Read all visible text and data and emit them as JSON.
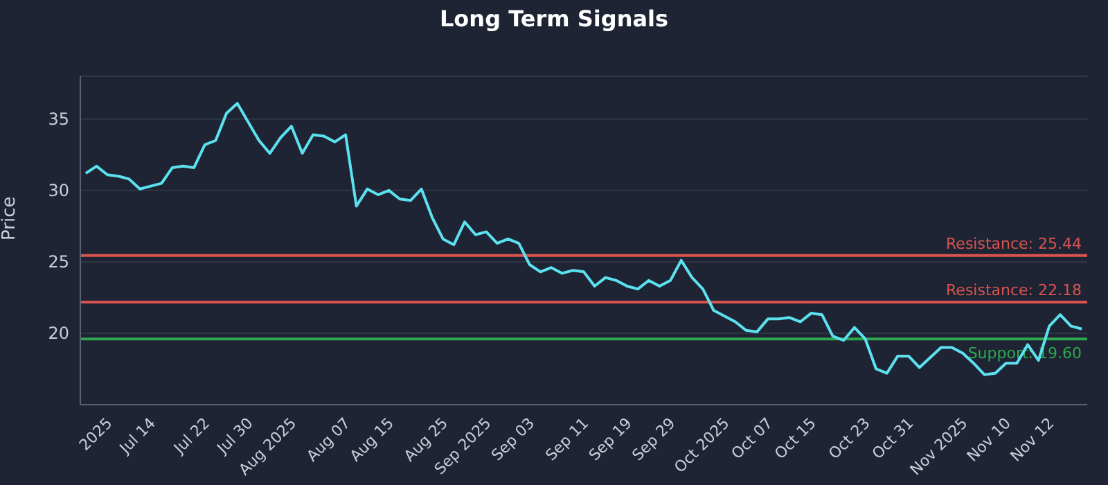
{
  "chart_data": {
    "type": "line",
    "title": "Long Term Signals",
    "ylabel": "Price",
    "categories": [
      null,
      null,
      "2025",
      null,
      null,
      null,
      "Jul 14",
      null,
      null,
      null,
      null,
      "Jul 22",
      null,
      null,
      null,
      "Jul 30",
      null,
      null,
      null,
      "Aug 2025",
      null,
      null,
      null,
      null,
      "Aug 07",
      null,
      null,
      null,
      "Aug 15",
      null,
      null,
      null,
      null,
      "Aug 25",
      null,
      null,
      null,
      "Sep 2025",
      null,
      null,
      null,
      "Sep 03",
      null,
      null,
      null,
      null,
      "Sep 11",
      null,
      null,
      null,
      "Sep 19",
      null,
      null,
      null,
      "Sep 29",
      null,
      null,
      null,
      null,
      "Oct 2025",
      null,
      null,
      null,
      "Oct 07",
      null,
      null,
      null,
      "Oct 15",
      null,
      null,
      null,
      null,
      "Oct 23",
      null,
      null,
      null,
      "Oct 31",
      null,
      null,
      null,
      null,
      "Nov 2025",
      null,
      null,
      null,
      "Nov 10",
      null,
      null,
      null,
      "Nov 12",
      null,
      null,
      null
    ],
    "series": [
      {
        "color": "#5ce1f0",
        "values": [
          31.2,
          31.7,
          31.1,
          31.0,
          30.8,
          30.1,
          30.3,
          30.5,
          31.6,
          31.7,
          31.6,
          33.2,
          33.5,
          35.4,
          36.1,
          34.8,
          33.5,
          32.6,
          33.7,
          34.5,
          32.6,
          33.9,
          33.8,
          33.4,
          33.9,
          28.9,
          30.1,
          29.7,
          30.0,
          29.4,
          29.3,
          30.1,
          28.1,
          26.6,
          26.2,
          27.8,
          26.9,
          27.1,
          26.3,
          26.6,
          26.3,
          24.8,
          24.3,
          24.6,
          24.2,
          24.4,
          24.3,
          23.3,
          23.9,
          23.7,
          23.3,
          23.1,
          23.7,
          23.3,
          23.7,
          25.1,
          23.9,
          23.1,
          21.6,
          21.2,
          20.8,
          20.2,
          20.1,
          21.0,
          21.0,
          21.1,
          20.8,
          21.4,
          21.3,
          19.8,
          19.5,
          20.4,
          19.6,
          17.5,
          17.2,
          18.4,
          18.4,
          17.6,
          18.3,
          19.0,
          19.0,
          18.6,
          17.9,
          17.1,
          17.2,
          17.9,
          17.9,
          19.2,
          18.1,
          20.5,
          21.3,
          20.5,
          20.3
        ]
      }
    ],
    "ylim": [
      15,
      38
    ],
    "yticks": [
      20,
      25,
      30,
      35
    ],
    "grid": "y",
    "legend": false,
    "marker": "none",
    "line_style": "solid",
    "ref_lines": [
      {
        "axis": "y",
        "value": 25.44,
        "label": "Resistance: 25.44",
        "color": "#d9534f"
      },
      {
        "axis": "y",
        "value": 22.18,
        "label": "Resistance: 22.18",
        "color": "#d9534f"
      },
      {
        "axis": "y",
        "value": 19.6,
        "label": "Support: 19.60",
        "color": "#2ea84f"
      }
    ]
  }
}
